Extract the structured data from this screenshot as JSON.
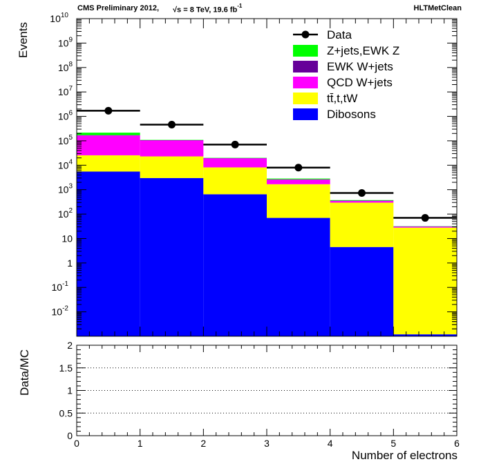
{
  "header": {
    "experiment": "CMS Preliminary 2012,",
    "energy": "s = 8 TeV, 19.6 fb",
    "lumi_exp": "-1",
    "selection": "HLTMetClean"
  },
  "chart_data": [
    {
      "type": "bar",
      "stacked": true,
      "yscale": "log",
      "xlabel": "Number of electrons",
      "ylabel": "Events",
      "xlim": [
        0,
        6
      ],
      "ylim": [
        0.001,
        10000000000
      ],
      "x_bin_edges": [
        0,
        1,
        2,
        3,
        4,
        5,
        6
      ],
      "x_ticks": [
        "0",
        "1",
        "2",
        "3",
        "4",
        "5",
        "6"
      ],
      "y_ticks": [
        {
          "base": "10",
          "exp": "-2"
        },
        {
          "base": "10",
          "exp": "-1"
        },
        {
          "base": "1",
          "exp": ""
        },
        {
          "base": "10",
          "exp": ""
        },
        {
          "base": "10",
          "exp": "2"
        },
        {
          "base": "10",
          "exp": "3"
        },
        {
          "base": "10",
          "exp": "4"
        },
        {
          "base": "10",
          "exp": "5"
        },
        {
          "base": "10",
          "exp": "6"
        },
        {
          "base": "10",
          "exp": "7"
        },
        {
          "base": "10",
          "exp": "8"
        },
        {
          "base": "10",
          "exp": "9"
        },
        {
          "base": "10",
          "exp": "10"
        }
      ],
      "legend_position": "top-right",
      "series": [
        {
          "name": "Dibosons",
          "color": "#0000ff",
          "values": [
            5500,
            3000,
            650,
            70,
            4.5,
            0.0012
          ]
        },
        {
          "name": "tt̄,t,tW",
          "color": "#ffff00",
          "values": [
            20000,
            20000,
            7500,
            1600,
            290,
            28
          ]
        },
        {
          "name": "QCD W+jets",
          "color": "#ff00ff",
          "values": [
            140000,
            80000,
            11000,
            900,
            50,
            2.5
          ]
        },
        {
          "name": "EWK W+jets",
          "color": "#660099",
          "values": [
            5000,
            3000,
            500,
            80,
            10,
            1
          ]
        },
        {
          "name": "Z+jets,EWK Z",
          "color": "#00ff00",
          "values": [
            45000,
            3000,
            500,
            200,
            20,
            0.5
          ]
        }
      ],
      "data_points": {
        "name": "Data",
        "color": "#000000",
        "x": [
          0.5,
          1.5,
          2.5,
          3.5,
          4.5,
          5.5
        ],
        "values": [
          1700000,
          460000,
          70000,
          8000,
          730,
          70
        ]
      }
    },
    {
      "type": "scatter",
      "xlabel": "Number of electrons",
      "ylabel": "Data/MC",
      "xlim": [
        0,
        6
      ],
      "ylim": [
        0,
        2
      ],
      "x_ticks": [
        "0",
        "1",
        "2",
        "3",
        "4",
        "5",
        "6"
      ],
      "y_ticks": [
        "0",
        "0.5",
        "1",
        "1.5",
        "2"
      ],
      "gridlines_y": [
        0.5,
        1,
        1.5
      ],
      "values": []
    }
  ]
}
